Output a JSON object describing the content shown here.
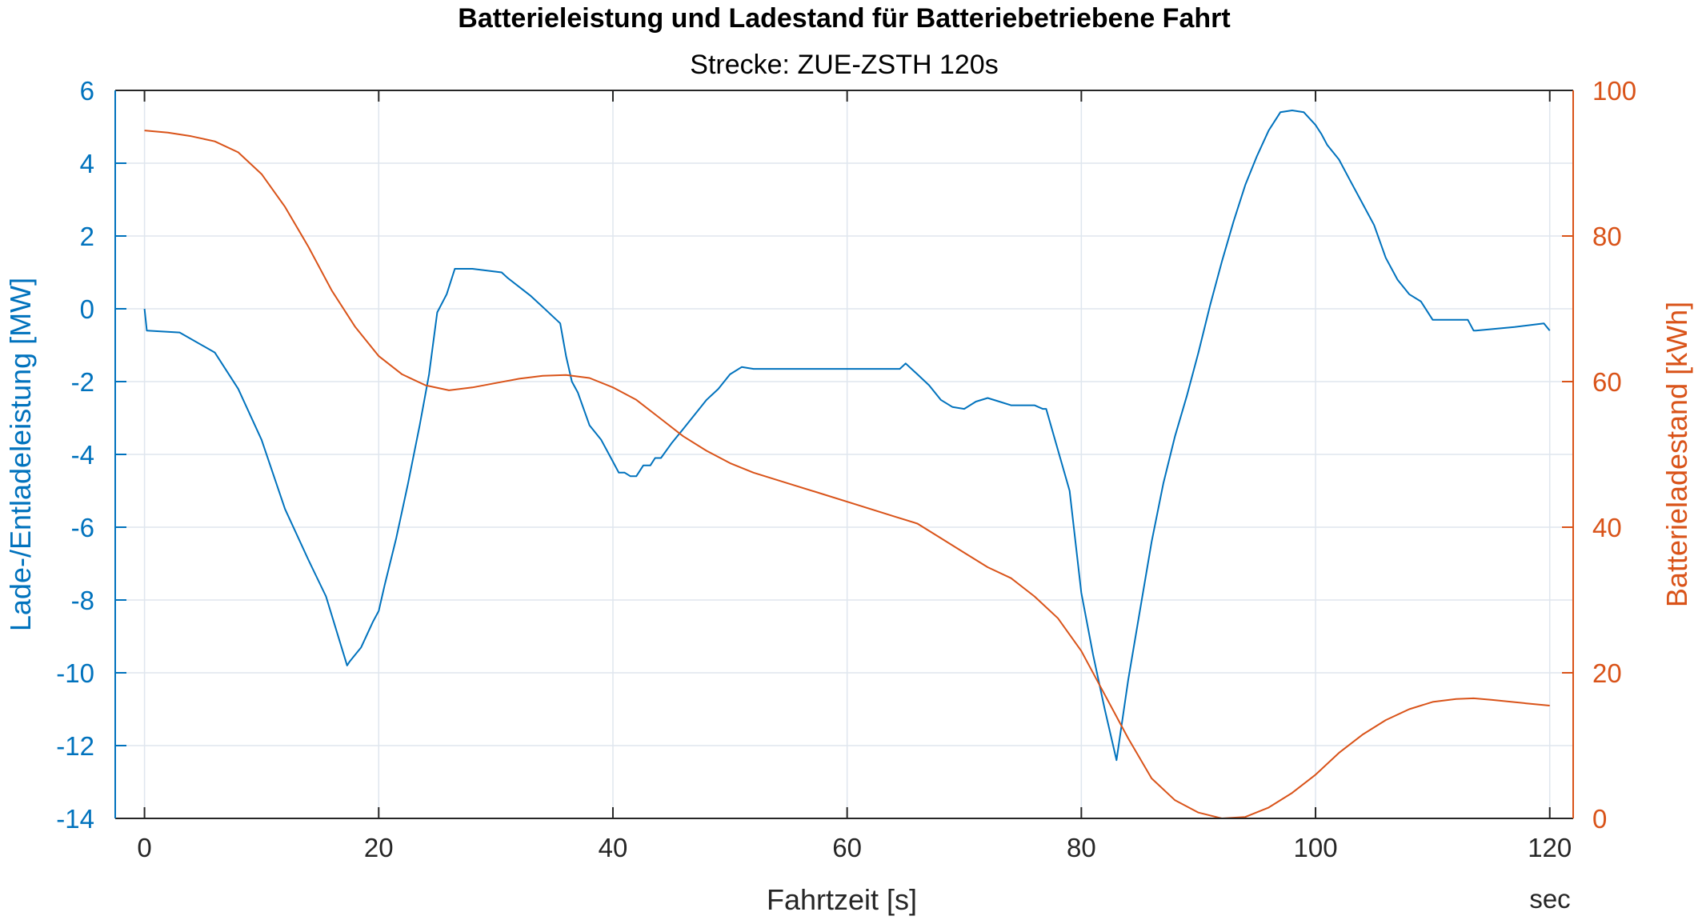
{
  "chart_data": {
    "type": "line",
    "title": "Batterieleistung und Ladestand für Batteriebetriebene Fahrt",
    "subtitle": "Strecke: ZUE-ZSTH 120s",
    "xlabel": "Fahrtzeit [s]",
    "x_unit_label": "sec",
    "ylabel_left": "Lade-/Entladeleistung [MW]",
    "ylabel_right": "Batterieladestand [kWh]",
    "xlim": [
      -2.5,
      122
    ],
    "ylim_left": [
      -14,
      6
    ],
    "ylim_right": [
      0,
      100
    ],
    "x_ticks": [
      "0",
      "20",
      "40",
      "60",
      "80",
      "100",
      "120"
    ],
    "y_left_ticks": [
      "6",
      "4",
      "2",
      "0",
      "-2",
      "-4",
      "-6",
      "-8",
      "-10",
      "-12",
      "-14"
    ],
    "y_right_ticks": [
      "100",
      "80",
      "60",
      "40",
      "20",
      "0"
    ],
    "grid": true,
    "colors": {
      "left": "#0072BD",
      "right": "#D95319",
      "grid": "#dfe6ee",
      "axis": "#262626"
    },
    "series": [
      {
        "axis": "left",
        "x": [
          0,
          0.2,
          3,
          6,
          8,
          10,
          12,
          14,
          15.5,
          17.3,
          17.5,
          18.5,
          19.5,
          20,
          20.5,
          21.5,
          22.5,
          23.5,
          24.3,
          25,
          25.8,
          26.5,
          27.3,
          28,
          30.5,
          31,
          32,
          33,
          34,
          35.5,
          36,
          36.5,
          37,
          38,
          39,
          40,
          40.5,
          41,
          41.5,
          42,
          42.6,
          43.2,
          43.6,
          44.1,
          45,
          46,
          47,
          48,
          49,
          50,
          51,
          52,
          55,
          60,
          64.5,
          65,
          66,
          67,
          68,
          69,
          70,
          71,
          72,
          73,
          74,
          76,
          76.7,
          77,
          79,
          80,
          81,
          82,
          83,
          84,
          85,
          86,
          87,
          88,
          89,
          90,
          91,
          92,
          93,
          94,
          95,
          96,
          97,
          98,
          99,
          100,
          100.5,
          101,
          102,
          103,
          104,
          105,
          106,
          107,
          108,
          109,
          110,
          111,
          112,
          113,
          113.5,
          113.7,
          117,
          119.5,
          120
        ],
        "y": [
          0,
          -0.6,
          -0.65,
          -1.2,
          -2.2,
          -3.6,
          -5.5,
          -6.9,
          -7.9,
          -9.8,
          -9.7,
          -9.3,
          -8.6,
          -8.3,
          -7.6,
          -6.3,
          -4.8,
          -3.2,
          -1.8,
          -0.1,
          0.4,
          1.1,
          1.1,
          1.1,
          1.0,
          0.85,
          0.6,
          0.35,
          0.05,
          -0.4,
          -1.3,
          -2.0,
          -2.3,
          -3.2,
          -3.6,
          -4.2,
          -4.5,
          -4.5,
          -4.6,
          -4.6,
          -4.3,
          -4.3,
          -4.1,
          -4.1,
          -3.7,
          -3.3,
          -2.9,
          -2.5,
          -2.2,
          -1.8,
          -1.6,
          -1.65,
          -1.65,
          -1.65,
          -1.65,
          -1.5,
          -1.8,
          -2.1,
          -2.5,
          -2.7,
          -2.75,
          -2.55,
          -2.45,
          -2.55,
          -2.65,
          -2.65,
          -2.75,
          -2.75,
          -5.0,
          -7.8,
          -9.5,
          -11.0,
          -12.4,
          -10.2,
          -8.3,
          -6.4,
          -4.8,
          -3.5,
          -2.4,
          -1.2,
          0.1,
          1.3,
          2.4,
          3.4,
          4.2,
          4.9,
          5.4,
          5.45,
          5.4,
          5.05,
          4.8,
          4.5,
          4.1,
          3.5,
          2.9,
          2.3,
          1.4,
          0.8,
          0.4,
          0.2,
          -0.3,
          -0.3,
          -0.3,
          -0.3,
          -0.6,
          -0.6,
          -0.5,
          -0.4,
          -0.6
        ],
        "color": "#0072BD"
      },
      {
        "axis": "right",
        "x": [
          0,
          2,
          4,
          6,
          8,
          10,
          12,
          14,
          16,
          18,
          20,
          22,
          24,
          26,
          28,
          30,
          32,
          34,
          36,
          38,
          40,
          42,
          44,
          46,
          48,
          50,
          52,
          55,
          58,
          61,
          64,
          66,
          68,
          70,
          72,
          74,
          76,
          78,
          80,
          82,
          84,
          86,
          88,
          90,
          92,
          94,
          96,
          98,
          100,
          102,
          104,
          106,
          108,
          110,
          112,
          113.5,
          115,
          118,
          120
        ],
        "y": [
          94.5,
          94.2,
          93.7,
          93.0,
          91.5,
          88.5,
          84.0,
          78.5,
          72.5,
          67.5,
          63.5,
          61.0,
          59.5,
          58.8,
          59.2,
          59.8,
          60.4,
          60.8,
          60.9,
          60.5,
          59.2,
          57.5,
          55.0,
          52.5,
          50.5,
          48.8,
          47.5,
          46.0,
          44.5,
          43.0,
          41.5,
          40.5,
          38.5,
          36.5,
          34.5,
          33.0,
          30.5,
          27.5,
          23.0,
          17.0,
          11.0,
          5.5,
          2.5,
          0.8,
          0.0,
          0.2,
          1.5,
          3.5,
          6.0,
          9.0,
          11.5,
          13.5,
          15.0,
          16.0,
          16.4,
          16.5,
          16.3,
          15.8,
          15.5
        ],
        "color": "#D95319"
      }
    ]
  }
}
